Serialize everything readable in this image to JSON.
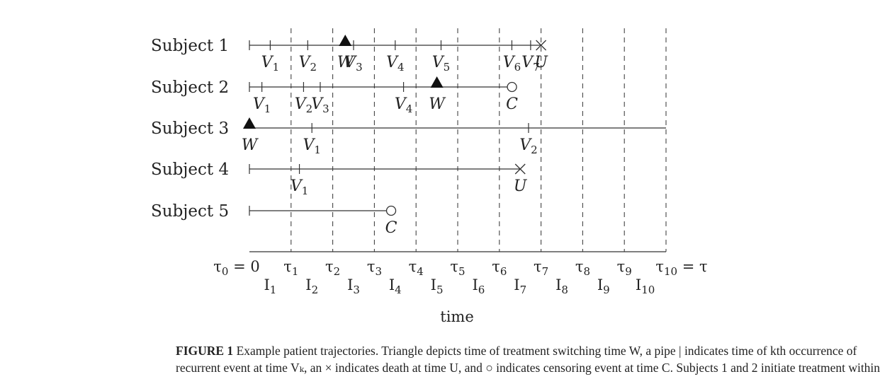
{
  "diagram": {
    "tau_labels": [
      {
        "main": "τ",
        "sub": "0",
        "suffix": " = 0"
      },
      {
        "main": "τ",
        "sub": "1",
        "suffix": ""
      },
      {
        "main": "τ",
        "sub": "2",
        "suffix": ""
      },
      {
        "main": "τ",
        "sub": "3",
        "suffix": ""
      },
      {
        "main": "τ",
        "sub": "4",
        "suffix": ""
      },
      {
        "main": "τ",
        "sub": "5",
        "suffix": ""
      },
      {
        "main": "τ",
        "sub": "6",
        "suffix": ""
      },
      {
        "main": "τ",
        "sub": "7",
        "suffix": ""
      },
      {
        "main": "τ",
        "sub": "8",
        "suffix": ""
      },
      {
        "main": "τ",
        "sub": "9",
        "suffix": ""
      },
      {
        "main": "τ",
        "sub": "10",
        "suffix": " = τ"
      }
    ],
    "interval_labels": [
      {
        "main": "I",
        "sub": "1"
      },
      {
        "main": "I",
        "sub": "2"
      },
      {
        "main": "I",
        "sub": "3"
      },
      {
        "main": "I",
        "sub": "4"
      },
      {
        "main": "I",
        "sub": "5"
      },
      {
        "main": "I",
        "sub": "6"
      },
      {
        "main": "I",
        "sub": "7"
      },
      {
        "main": "I",
        "sub": "8"
      },
      {
        "main": "I",
        "sub": "9"
      },
      {
        "main": "I",
        "sub": "10"
      }
    ],
    "axis_label": "time",
    "subjects": [
      {
        "label": "Subject 1",
        "end": 7.0,
        "end_type": "death",
        "events": [
          {
            "t": 0.5,
            "label": "V",
            "sub": "1"
          },
          {
            "t": 1.4,
            "label": "V",
            "sub": "2"
          },
          {
            "t": 2.5,
            "label": "V",
            "sub": "3"
          },
          {
            "t": 3.5,
            "label": "V",
            "sub": "4"
          },
          {
            "t": 4.6,
            "label": "V",
            "sub": "5"
          },
          {
            "t": 6.3,
            "label": "V",
            "sub": "6"
          },
          {
            "t": 6.75,
            "label": "V",
            "sub": "7"
          }
        ],
        "switch": {
          "t": 2.3,
          "label": "W"
        },
        "end_label": "U"
      },
      {
        "label": "Subject 2",
        "end": 6.2,
        "end_type": "censor",
        "events": [
          {
            "t": 0.3,
            "label": "V",
            "sub": "1"
          },
          {
            "t": 1.3,
            "label": "V",
            "sub": "2"
          },
          {
            "t": 1.7,
            "label": "V",
            "sub": "3"
          },
          {
            "t": 3.7,
            "label": "V",
            "sub": "4"
          }
        ],
        "switch": {
          "t": 4.5,
          "label": "W"
        },
        "end_label": "C"
      },
      {
        "label": "Subject 3",
        "end": 10.0,
        "end_type": "none",
        "events": [
          {
            "t": 1.5,
            "label": "V",
            "sub": "1"
          },
          {
            "t": 6.7,
            "label": "V",
            "sub": "2"
          }
        ],
        "switch": {
          "t": 0.0,
          "label": "W"
        },
        "end_label": ""
      },
      {
        "label": "Subject 4",
        "end": 6.5,
        "end_type": "death",
        "events": [
          {
            "t": 1.2,
            "label": "V",
            "sub": "1"
          }
        ],
        "switch": null,
        "end_label": "U"
      },
      {
        "label": "Subject 5",
        "end": 3.3,
        "end_type": "censor",
        "events": [],
        "switch": null,
        "end_label": "C"
      }
    ]
  },
  "caption": {
    "fig_label": "FIGURE 1",
    "line1": " Example patient trajectories. Triangle depicts time of treatment switching time W, a pipe | indicates time of kth occurrence of",
    "line2": "recurrent event at time Vₖ, an × indicates death at time U, and ○ indicates censoring event at time C. Subjects 1 and 2 initiate treatment within"
  }
}
